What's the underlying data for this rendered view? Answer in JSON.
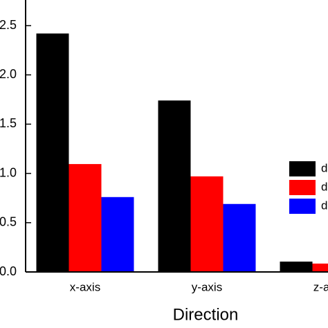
{
  "chart_data": {
    "type": "bar",
    "xlabel": "Direction",
    "categories": [
      "x-axis",
      "y-axis",
      "z-axis"
    ],
    "series": [
      {
        "name": "d",
        "color": "#000000",
        "values": [
          2.42,
          1.74,
          0.105
        ]
      },
      {
        "name": "d",
        "color": "#ff0000",
        "values": [
          1.095,
          0.97,
          0.085
        ]
      },
      {
        "name": "d",
        "color": "#0000ff",
        "values": [
          0.76,
          0.69,
          null
        ]
      }
    ],
    "ylim": [
      0,
      2.76
    ],
    "yticks": [
      {
        "value": 0,
        "label": "0.0"
      },
      0.5,
      {
        "value": 1,
        "label": "1.0"
      },
      1.5,
      {
        "value": 2,
        "label": "2.0"
      },
      2.5
    ]
  }
}
